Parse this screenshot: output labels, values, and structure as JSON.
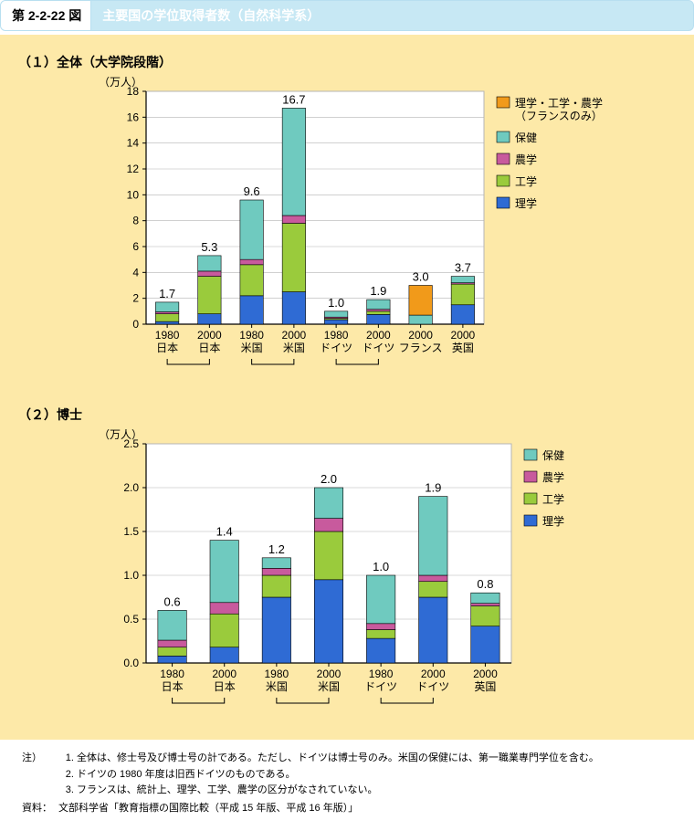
{
  "figure_number": "第 2-2-22 図",
  "figure_title": "主要国の学位取得者数（自然科学系）",
  "palette": {
    "bg_panel": "#fde9a8",
    "plot_bg": "#ffffff",
    "grid": "#b5b5b5",
    "axis": "#000000",
    "title_strip_bg": "#c7e8f4",
    "title_strip_fg": "#ffffff"
  },
  "series_colors": {
    "rigaku": "#2f6bd4",
    "kougaku": "#9acb3c",
    "nougaku": "#c85a9d",
    "hoken": "#6fcabf",
    "france_comb": "#f19a1a"
  },
  "chart1": {
    "subtitle": "（１）全体（大学院段階）",
    "y_label": "（万人）",
    "y_max": 18,
    "y_tick": 2,
    "categories": [
      {
        "line1": "1980",
        "line2": "日本"
      },
      {
        "line1": "2000",
        "line2": "日本"
      },
      {
        "line1": "1980",
        "line2": "米国"
      },
      {
        "line1": "2000",
        "line2": "米国"
      },
      {
        "line1": "1980",
        "line2": "ドイツ"
      },
      {
        "line1": "2000",
        "line2": "ドイツ"
      },
      {
        "line1": "2000",
        "line2": "フランス"
      },
      {
        "line1": "2000",
        "line2": "英国"
      }
    ],
    "top_labels": [
      "1.7",
      "5.3",
      "9.6",
      "16.7",
      "1.0",
      "1.9",
      "3.0",
      "3.7"
    ],
    "stacks": [
      [
        {
          "k": "rigaku",
          "v": 0.2
        },
        {
          "k": "kougaku",
          "v": 0.6
        },
        {
          "k": "nougaku",
          "v": 0.15
        },
        {
          "k": "hoken",
          "v": 0.75
        }
      ],
      [
        {
          "k": "rigaku",
          "v": 0.8
        },
        {
          "k": "kougaku",
          "v": 2.9
        },
        {
          "k": "nougaku",
          "v": 0.4
        },
        {
          "k": "hoken",
          "v": 1.2
        }
      ],
      [
        {
          "k": "rigaku",
          "v": 2.2
        },
        {
          "k": "kougaku",
          "v": 2.4
        },
        {
          "k": "nougaku",
          "v": 0.4
        },
        {
          "k": "hoken",
          "v": 4.6
        }
      ],
      [
        {
          "k": "rigaku",
          "v": 2.5
        },
        {
          "k": "kougaku",
          "v": 5.3
        },
        {
          "k": "nougaku",
          "v": 0.6
        },
        {
          "k": "hoken",
          "v": 8.3
        }
      ],
      [
        {
          "k": "rigaku",
          "v": 0.35
        },
        {
          "k": "kougaku",
          "v": 0.1
        },
        {
          "k": "nougaku",
          "v": 0.1
        },
        {
          "k": "hoken",
          "v": 0.45
        }
      ],
      [
        {
          "k": "rigaku",
          "v": 0.75
        },
        {
          "k": "kougaku",
          "v": 0.25
        },
        {
          "k": "nougaku",
          "v": 0.15
        },
        {
          "k": "hoken",
          "v": 0.75
        }
      ],
      [
        {
          "k": "hoken",
          "v": 0.7
        },
        {
          "k": "france_comb",
          "v": 2.3
        }
      ],
      [
        {
          "k": "rigaku",
          "v": 1.5
        },
        {
          "k": "kougaku",
          "v": 1.6
        },
        {
          "k": "nougaku",
          "v": 0.1
        },
        {
          "k": "hoken",
          "v": 0.5
        }
      ]
    ],
    "legend": [
      {
        "k": "france_comb",
        "label": "理学・工学・農学\n（フランスのみ）"
      },
      {
        "k": "hoken",
        "label": "保健"
      },
      {
        "k": "nougaku",
        "label": "農学"
      },
      {
        "k": "kougaku",
        "label": "工学"
      },
      {
        "k": "rigaku",
        "label": "理学"
      }
    ],
    "brackets": [
      [
        0,
        1
      ],
      [
        2,
        3
      ],
      [
        4,
        5
      ]
    ]
  },
  "chart2": {
    "subtitle": "（２）博士",
    "y_label": "（万人）",
    "y_max": 2.5,
    "y_tick": 0.5,
    "categories": [
      {
        "line1": "1980",
        "line2": "日本"
      },
      {
        "line1": "2000",
        "line2": "日本"
      },
      {
        "line1": "1980",
        "line2": "米国"
      },
      {
        "line1": "2000",
        "line2": "米国"
      },
      {
        "line1": "1980",
        "line2": "ドイツ"
      },
      {
        "line1": "2000",
        "line2": "ドイツ"
      },
      {
        "line1": "2000",
        "line2": "英国"
      }
    ],
    "top_labels": [
      "0.6",
      "1.4",
      "1.2",
      "2.0",
      "1.0",
      "1.9",
      "0.8"
    ],
    "stacks": [
      [
        {
          "k": "rigaku",
          "v": 0.08
        },
        {
          "k": "kougaku",
          "v": 0.1
        },
        {
          "k": "nougaku",
          "v": 0.08
        },
        {
          "k": "hoken",
          "v": 0.34
        }
      ],
      [
        {
          "k": "rigaku",
          "v": 0.18
        },
        {
          "k": "kougaku",
          "v": 0.38
        },
        {
          "k": "nougaku",
          "v": 0.13
        },
        {
          "k": "hoken",
          "v": 0.71
        }
      ],
      [
        {
          "k": "rigaku",
          "v": 0.75
        },
        {
          "k": "kougaku",
          "v": 0.25
        },
        {
          "k": "nougaku",
          "v": 0.08
        },
        {
          "k": "hoken",
          "v": 0.12
        }
      ],
      [
        {
          "k": "rigaku",
          "v": 0.95
        },
        {
          "k": "kougaku",
          "v": 0.55
        },
        {
          "k": "nougaku",
          "v": 0.15
        },
        {
          "k": "hoken",
          "v": 0.35
        }
      ],
      [
        {
          "k": "rigaku",
          "v": 0.28
        },
        {
          "k": "kougaku",
          "v": 0.1
        },
        {
          "k": "nougaku",
          "v": 0.07
        },
        {
          "k": "hoken",
          "v": 0.55
        }
      ],
      [
        {
          "k": "rigaku",
          "v": 0.75
        },
        {
          "k": "kougaku",
          "v": 0.18
        },
        {
          "k": "nougaku",
          "v": 0.07
        },
        {
          "k": "hoken",
          "v": 0.9
        }
      ],
      [
        {
          "k": "rigaku",
          "v": 0.42
        },
        {
          "k": "kougaku",
          "v": 0.23
        },
        {
          "k": "nougaku",
          "v": 0.03
        },
        {
          "k": "hoken",
          "v": 0.12
        }
      ]
    ],
    "legend": [
      {
        "k": "hoken",
        "label": "保健"
      },
      {
        "k": "nougaku",
        "label": "農学"
      },
      {
        "k": "kougaku",
        "label": "工学"
      },
      {
        "k": "rigaku",
        "label": "理学"
      }
    ],
    "brackets": [
      [
        0,
        1
      ],
      [
        2,
        3
      ],
      [
        4,
        5
      ]
    ]
  },
  "notes": {
    "note_label": "注）",
    "items": [
      "全体は、修士号及び博士号の計である。ただし、ドイツは博士号のみ。米国の保健には、第一職業専門学位を含む。",
      "ドイツの 1980 年度は旧西ドイツのものである。",
      "フランスは、統計上、理学、工学、農学の区分がなされていない。"
    ],
    "source_label": "資料：",
    "source": "文部科学省「教育指標の国際比較（平成 15 年版、平成 16 年版）」"
  }
}
